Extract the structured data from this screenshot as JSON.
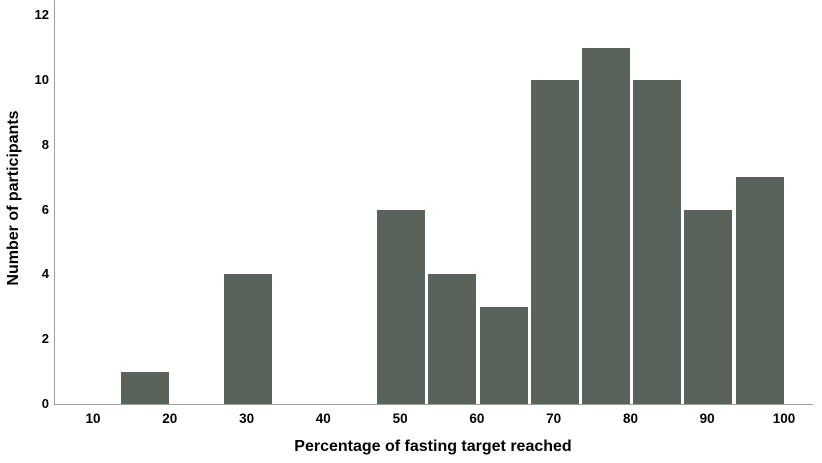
{
  "colors": {
    "bar": "#5a625c",
    "axis": "#9e9e9e",
    "text": "#000000",
    "background": "#ffffff"
  },
  "chart_data": {
    "type": "bar",
    "subtype": "histogram",
    "title": "",
    "xlabel": "Percentage of fasting target reached",
    "ylabel": "Number of participants",
    "x_ticks": [
      10,
      20,
      30,
      40,
      50,
      60,
      70,
      80,
      90,
      100
    ],
    "y_ticks": [
      0,
      2,
      4,
      6,
      8,
      10,
      12
    ],
    "xlim": [
      4.8,
      103.6
    ],
    "ylim": [
      0,
      12.5
    ],
    "grid": false,
    "legend": false,
    "bin_width": 6.67,
    "bins": [
      {
        "center": 16.67,
        "count": 1
      },
      {
        "center": 30,
        "count": 4
      },
      {
        "center": 50,
        "count": 6
      },
      {
        "center": 56.67,
        "count": 4
      },
      {
        "center": 63.33,
        "count": 3
      },
      {
        "center": 70,
        "count": 10
      },
      {
        "center": 76.67,
        "count": 11
      },
      {
        "center": 83.33,
        "count": 10
      },
      {
        "center": 90,
        "count": 6
      },
      {
        "center": 96.67,
        "count": 7
      }
    ]
  }
}
